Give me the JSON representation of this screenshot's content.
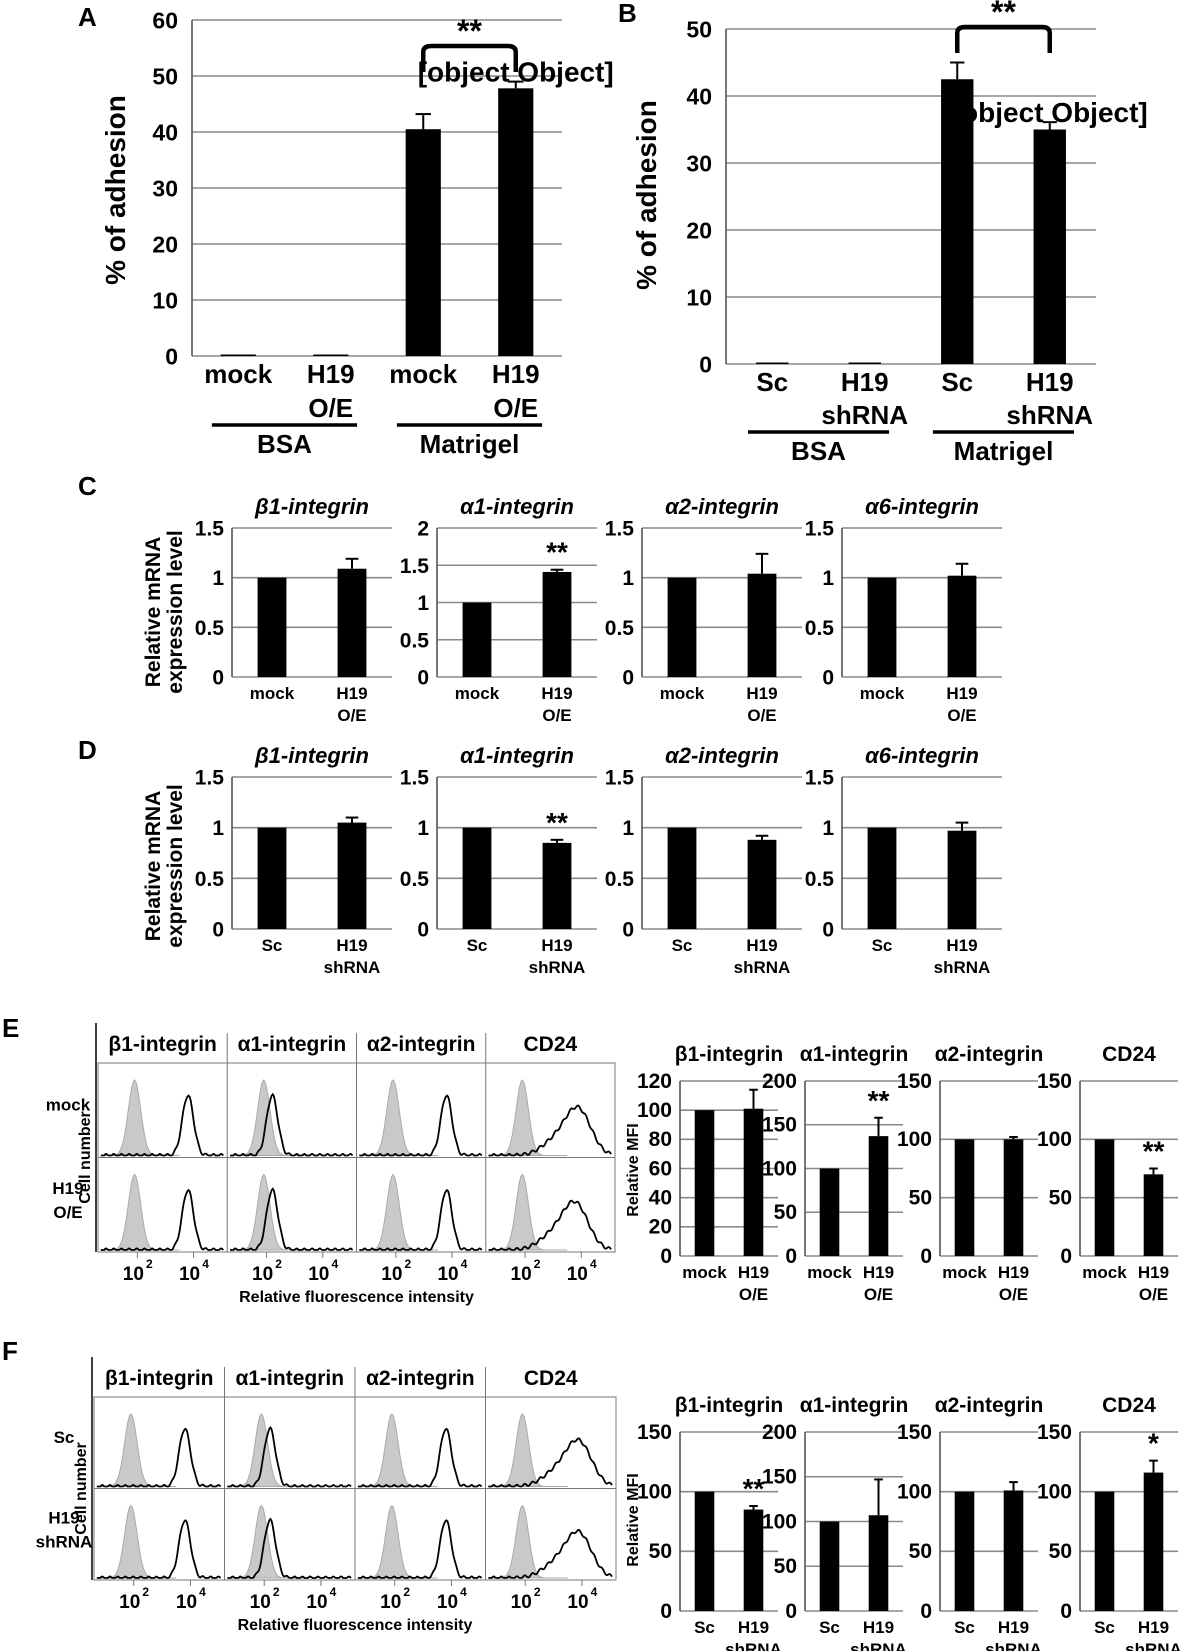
{
  "panels": [
    {
      "id": "A",
      "label": "A"
    },
    {
      "id": "B",
      "label": "B"
    },
    {
      "id": "C",
      "label": "C"
    },
    {
      "id": "D",
      "label": "D"
    },
    {
      "id": "E",
      "label": "E"
    },
    {
      "id": "F",
      "label": "F"
    }
  ],
  "chart_data": [
    {
      "id": "A",
      "type": "bar",
      "ylabel": "% of adhesion",
      "ylim": [
        0,
        60
      ],
      "yticks": [
        "0",
        "10",
        "20",
        "30",
        "40",
        "50",
        "60"
      ],
      "categories": [
        [
          "mock"
        ],
        [
          "H19",
          "O/E"
        ],
        [
          "mock"
        ],
        [
          "H19",
          "O/E"
        ]
      ],
      "values": [
        0,
        0,
        40.5,
        47.8
      ],
      "errors": [
        0,
        0,
        2.7,
        1.2
      ],
      "groups": [
        {
          "label": "BSA",
          "span": [
            0,
            1
          ]
        },
        {
          "label": "Matrigel",
          "span": [
            2,
            3
          ]
        }
      ],
      "significance": [
        {
          "bars": [
            2,
            3
          ],
          "label": "**"
        }
      ]
    },
    {
      "id": "B",
      "type": "bar",
      "ylabel": "% of adhesion",
      "ylim": [
        0,
        50
      ],
      "yticks": [
        "0",
        "10",
        "20",
        "30",
        "40",
        "50"
      ],
      "categories": [
        [
          "Sc"
        ],
        [
          "H19",
          "shRNA"
        ],
        [
          "Sc"
        ],
        [
          "H19",
          "shRNA"
        ]
      ],
      "values": [
        0,
        0,
        42.5,
        35.0
      ],
      "errors": [
        0,
        0,
        2.5,
        1.1
      ],
      "groups": [
        {
          "label": "BSA",
          "span": [
            0,
            1
          ]
        },
        {
          "label": "Matrigel",
          "span": [
            2,
            3
          ]
        }
      ],
      "significance": [
        {
          "bars": [
            2,
            3
          ],
          "label": "**"
        }
      ]
    },
    {
      "id": "C",
      "ylabel": [
        "Relative mRNA",
        "expression level"
      ],
      "subcharts": [
        {
          "type": "bar",
          "title": "β1-integrin",
          "ylim": [
            0,
            1.5
          ],
          "yticks": [
            "0",
            "0.5",
            "1",
            "1.5"
          ],
          "categories": [
            [
              "mock"
            ],
            [
              "H19",
              "O/E"
            ]
          ],
          "values": [
            1.0,
            1.09
          ],
          "errors": [
            0,
            0.1
          ],
          "significance": ""
        },
        {
          "type": "bar",
          "title": "α1-integrin",
          "ylim": [
            0,
            2
          ],
          "yticks": [
            "0",
            "0.5",
            "1",
            "1.5",
            "2"
          ],
          "categories": [
            [
              "mock"
            ],
            [
              "H19",
              "O/E"
            ]
          ],
          "values": [
            1.0,
            1.41
          ],
          "errors": [
            0,
            0.03
          ],
          "significance": "**"
        },
        {
          "type": "bar",
          "title": "α2-integrin",
          "ylim": [
            0,
            1.5
          ],
          "yticks": [
            "0",
            "0.5",
            "1",
            "1.5"
          ],
          "categories": [
            [
              "mock"
            ],
            [
              "H19",
              "O/E"
            ]
          ],
          "values": [
            1.0,
            1.04
          ],
          "errors": [
            0,
            0.2
          ],
          "significance": ""
        },
        {
          "type": "bar",
          "title": "α6-integrin",
          "ylim": [
            0,
            1.5
          ],
          "yticks": [
            "0",
            "0.5",
            "1",
            "1.5"
          ],
          "categories": [
            [
              "mock"
            ],
            [
              "H19",
              "O/E"
            ]
          ],
          "values": [
            1.0,
            1.02
          ],
          "errors": [
            0,
            0.12
          ],
          "significance": ""
        }
      ]
    },
    {
      "id": "D",
      "ylabel": [
        "Relative mRNA",
        "expression level"
      ],
      "subcharts": [
        {
          "type": "bar",
          "title": "β1-integrin",
          "ylim": [
            0,
            1.5
          ],
          "yticks": [
            "0",
            "0.5",
            "1",
            "1.5"
          ],
          "categories": [
            [
              "Sc"
            ],
            [
              "H19",
              "shRNA"
            ]
          ],
          "values": [
            1.0,
            1.05
          ],
          "errors": [
            0,
            0.05
          ],
          "significance": ""
        },
        {
          "type": "bar",
          "title": "α1-integrin",
          "ylim": [
            0,
            1.5
          ],
          "yticks": [
            "0",
            "0.5",
            "1",
            "1.5"
          ],
          "categories": [
            [
              "Sc"
            ],
            [
              "H19",
              "shRNA"
            ]
          ],
          "values": [
            1.0,
            0.85
          ],
          "errors": [
            0,
            0.03
          ],
          "significance": "**"
        },
        {
          "type": "bar",
          "title": "α2-integrin",
          "ylim": [
            0,
            1.5
          ],
          "yticks": [
            "0",
            "0.5",
            "1",
            "1.5"
          ],
          "categories": [
            [
              "Sc"
            ],
            [
              "H19",
              "shRNA"
            ]
          ],
          "values": [
            1.0,
            0.88
          ],
          "errors": [
            0,
            0.04
          ],
          "significance": ""
        },
        {
          "type": "bar",
          "title": "α6-integrin",
          "ylim": [
            0,
            1.5
          ],
          "yticks": [
            "0",
            "0.5",
            "1",
            "1.5"
          ],
          "categories": [
            [
              "Sc"
            ],
            [
              "H19",
              "shRNA"
            ]
          ],
          "values": [
            1.0,
            0.97
          ],
          "errors": [
            0,
            0.08
          ],
          "significance": ""
        }
      ]
    },
    {
      "id": "E-flow",
      "type": "histogram",
      "columns": [
        "β1-integrin",
        "α1-integrin",
        "α2-integrin",
        "CD24"
      ],
      "rows": [
        [
          "mock"
        ],
        [
          "H19",
          "O/E"
        ]
      ],
      "ylabel": "Cell number",
      "xlabel": "Relative fluorescence intensity",
      "xticks": [
        "2",
        "4",
        "2",
        "4",
        "2",
        "4",
        "2",
        "4"
      ],
      "xtick_base": "10",
      "peaks_log10": [
        [
          3.8,
          2.2,
          3.8,
          3.9
        ],
        [
          3.8,
          2.2,
          3.8,
          3.8
        ]
      ]
    },
    {
      "id": "E-mfi",
      "ylabel": "Relative MFI",
      "subcharts": [
        {
          "type": "bar",
          "title": "β1-integrin",
          "ylim": [
            0,
            120
          ],
          "yticks": [
            "0",
            "20",
            "40",
            "60",
            "80",
            "100",
            "120"
          ],
          "categories": [
            [
              "mock"
            ],
            [
              "H19",
              "O/E"
            ]
          ],
          "values": [
            100,
            101
          ],
          "errors": [
            0,
            13
          ],
          "significance": ""
        },
        {
          "type": "bar",
          "title": "α1-integrin",
          "ylim": [
            0,
            200
          ],
          "yticks": [
            "0",
            "50",
            "100",
            "150",
            "200"
          ],
          "categories": [
            [
              "mock"
            ],
            [
              "H19",
              "O/E"
            ]
          ],
          "values": [
            100,
            137
          ],
          "errors": [
            0,
            21
          ],
          "significance": "**"
        },
        {
          "type": "bar",
          "title": "α2-integrin",
          "ylim": [
            0,
            150
          ],
          "yticks": [
            "0",
            "50",
            "100",
            "150"
          ],
          "categories": [
            [
              "mock"
            ],
            [
              "H19",
              "O/E"
            ]
          ],
          "values": [
            100,
            100
          ],
          "errors": [
            0,
            2
          ],
          "significance": ""
        },
        {
          "type": "bar",
          "title": "CD24",
          "ylim": [
            0,
            150
          ],
          "yticks": [
            "0",
            "50",
            "100",
            "150"
          ],
          "categories": [
            [
              "mock"
            ],
            [
              "H19",
              "O/E"
            ]
          ],
          "values": [
            100,
            70
          ],
          "errors": [
            0,
            5
          ],
          "significance": "**"
        }
      ]
    },
    {
      "id": "F-flow",
      "type": "histogram",
      "columns": [
        "β1-integrin",
        "α1-integrin",
        "α2-integrin",
        "CD24"
      ],
      "rows": [
        [
          "Sc"
        ],
        [
          "H19",
          "shRNA"
        ]
      ],
      "ylabel": "Cell number",
      "xlabel": "Relative fluorescence intensity",
      "xticks": [
        "2",
        "4",
        "2",
        "4",
        "2",
        "4",
        "2",
        "4"
      ],
      "xtick_base": "10",
      "peaks_log10": [
        [
          3.8,
          2.2,
          3.8,
          3.9
        ],
        [
          3.8,
          2.2,
          3.8,
          3.9
        ]
      ]
    },
    {
      "id": "F-mfi",
      "ylabel": "Relative MFI",
      "subcharts": [
        {
          "type": "bar",
          "title": "β1-integrin",
          "ylim": [
            0,
            150
          ],
          "yticks": [
            "0",
            "50",
            "100",
            "150"
          ],
          "categories": [
            [
              "Sc"
            ],
            [
              "H19",
              "shRNA"
            ]
          ],
          "values": [
            100,
            85
          ],
          "errors": [
            0,
            3
          ],
          "significance": "**"
        },
        {
          "type": "bar",
          "title": "α1-integrin",
          "ylim": [
            0,
            200
          ],
          "yticks": [
            "0",
            "50",
            "100",
            "150",
            "200"
          ],
          "categories": [
            [
              "Sc"
            ],
            [
              "H19",
              "shRNA"
            ]
          ],
          "values": [
            100,
            107
          ],
          "errors": [
            0,
            40
          ],
          "significance": ""
        },
        {
          "type": "bar",
          "title": "α2-integrin",
          "ylim": [
            0,
            150
          ],
          "yticks": [
            "0",
            "50",
            "100",
            "150"
          ],
          "categories": [
            [
              "Sc"
            ],
            [
              "H19",
              "shRNA"
            ]
          ],
          "values": [
            100,
            101
          ],
          "errors": [
            0,
            7
          ],
          "significance": ""
        },
        {
          "type": "bar",
          "title": "CD24",
          "ylim": [
            0,
            150
          ],
          "yticks": [
            "0",
            "50",
            "100",
            "150"
          ],
          "categories": [
            [
              "Sc"
            ],
            [
              "H19",
              "shRNA"
            ]
          ],
          "values": [
            100,
            116
          ],
          "errors": [
            0,
            10
          ],
          "significance": "*"
        }
      ]
    }
  ]
}
